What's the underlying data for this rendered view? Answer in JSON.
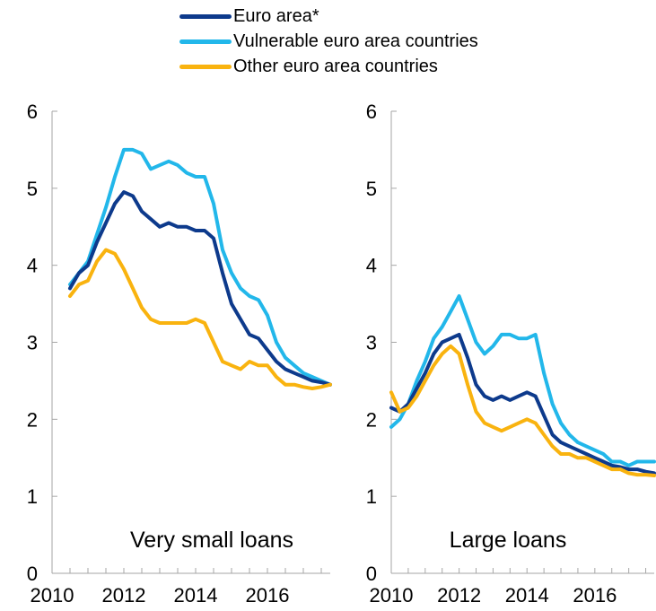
{
  "legend": [
    {
      "label": "Euro area*",
      "color": "#0d3a8c"
    },
    {
      "label": "Vulnerable euro area countries",
      "color": "#22b7ea"
    },
    {
      "label": "Other euro area countries",
      "color": "#f9b30f"
    }
  ],
  "chart_data": [
    {
      "type": "line",
      "panel_label": "Very small loans",
      "xlim": [
        2010,
        2017.75
      ],
      "ylim": [
        0,
        6
      ],
      "x_ticks": [
        "2010",
        "2012",
        "2014",
        "2016"
      ],
      "y_ticks": [
        "0",
        "1",
        "2",
        "3",
        "4",
        "5",
        "6"
      ],
      "grid": false,
      "series": [
        {
          "name": "Euro area*",
          "color": "#0d3a8c",
          "x": [
            2010.5,
            2010.75,
            2011.0,
            2011.25,
            2011.5,
            2011.75,
            2012.0,
            2012.25,
            2012.5,
            2012.75,
            2013.0,
            2013.25,
            2013.5,
            2013.75,
            2014.0,
            2014.25,
            2014.5,
            2014.75,
            2015.0,
            2015.25,
            2015.5,
            2015.75,
            2016.0,
            2016.25,
            2016.5,
            2016.75,
            2017.0,
            2017.25,
            2017.5,
            2017.75
          ],
          "y": [
            3.7,
            3.9,
            4.0,
            4.3,
            4.55,
            4.8,
            4.95,
            4.9,
            4.7,
            4.6,
            4.5,
            4.55,
            4.5,
            4.5,
            4.45,
            4.45,
            4.35,
            3.9,
            3.5,
            3.3,
            3.1,
            3.05,
            2.9,
            2.75,
            2.65,
            2.6,
            2.55,
            2.5,
            2.48,
            2.45
          ]
        },
        {
          "name": "Vulnerable euro area countries",
          "color": "#22b7ea",
          "x": [
            2010.5,
            2010.75,
            2011.0,
            2011.25,
            2011.5,
            2011.75,
            2012.0,
            2012.25,
            2012.5,
            2012.75,
            2013.0,
            2013.25,
            2013.5,
            2013.75,
            2014.0,
            2014.25,
            2014.5,
            2014.75,
            2015.0,
            2015.25,
            2015.5,
            2015.75,
            2016.0,
            2016.25,
            2016.5,
            2016.75,
            2017.0,
            2017.25,
            2017.5,
            2017.75
          ],
          "y": [
            3.75,
            3.9,
            4.05,
            4.4,
            4.75,
            5.15,
            5.5,
            5.5,
            5.45,
            5.25,
            5.3,
            5.35,
            5.3,
            5.2,
            5.15,
            5.15,
            4.8,
            4.2,
            3.9,
            3.7,
            3.6,
            3.55,
            3.35,
            3.0,
            2.8,
            2.7,
            2.6,
            2.55,
            2.5,
            2.45
          ]
        },
        {
          "name": "Other euro area countries",
          "color": "#f9b30f",
          "x": [
            2010.5,
            2010.75,
            2011.0,
            2011.25,
            2011.5,
            2011.75,
            2012.0,
            2012.25,
            2012.5,
            2012.75,
            2013.0,
            2013.25,
            2013.5,
            2013.75,
            2014.0,
            2014.25,
            2014.5,
            2014.75,
            2015.0,
            2015.25,
            2015.5,
            2015.75,
            2016.0,
            2016.25,
            2016.5,
            2016.75,
            2017.0,
            2017.25,
            2017.5,
            2017.75
          ],
          "y": [
            3.6,
            3.75,
            3.8,
            4.05,
            4.2,
            4.15,
            3.95,
            3.7,
            3.45,
            3.3,
            3.25,
            3.25,
            3.25,
            3.25,
            3.3,
            3.25,
            3.0,
            2.75,
            2.7,
            2.65,
            2.75,
            2.7,
            2.7,
            2.55,
            2.45,
            2.45,
            2.42,
            2.4,
            2.42,
            2.45
          ]
        }
      ]
    },
    {
      "type": "line",
      "panel_label": "Large loans",
      "xlim": [
        2010,
        2017.75
      ],
      "ylim": [
        0,
        6
      ],
      "x_ticks": [
        "2010",
        "2012",
        "2014",
        "2016"
      ],
      "y_ticks": [
        "0",
        "1",
        "2",
        "3",
        "4",
        "5",
        "6"
      ],
      "grid": false,
      "series": [
        {
          "name": "Euro area*",
          "color": "#0d3a8c",
          "x": [
            2010.0,
            2010.25,
            2010.5,
            2010.75,
            2011.0,
            2011.25,
            2011.5,
            2011.75,
            2012.0,
            2012.25,
            2012.5,
            2012.75,
            2013.0,
            2013.25,
            2013.5,
            2013.75,
            2014.0,
            2014.25,
            2014.5,
            2014.75,
            2015.0,
            2015.25,
            2015.5,
            2015.75,
            2016.0,
            2016.25,
            2016.5,
            2016.75,
            2017.0,
            2017.25,
            2017.5,
            2017.75
          ],
          "y": [
            2.15,
            2.1,
            2.2,
            2.4,
            2.6,
            2.85,
            3.0,
            3.05,
            3.1,
            2.8,
            2.45,
            2.3,
            2.25,
            2.3,
            2.25,
            2.3,
            2.35,
            2.3,
            2.05,
            1.8,
            1.7,
            1.65,
            1.6,
            1.55,
            1.5,
            1.45,
            1.4,
            1.38,
            1.35,
            1.35,
            1.32,
            1.3
          ]
        },
        {
          "name": "Vulnerable euro area countries",
          "color": "#22b7ea",
          "x": [
            2010.0,
            2010.25,
            2010.5,
            2010.75,
            2011.0,
            2011.25,
            2011.5,
            2011.75,
            2012.0,
            2012.25,
            2012.5,
            2012.75,
            2013.0,
            2013.25,
            2013.5,
            2013.75,
            2014.0,
            2014.25,
            2014.5,
            2014.75,
            2015.0,
            2015.25,
            2015.5,
            2015.75,
            2016.0,
            2016.25,
            2016.5,
            2016.75,
            2017.0,
            2017.25,
            2017.5,
            2017.75
          ],
          "y": [
            1.9,
            2.0,
            2.2,
            2.5,
            2.75,
            3.05,
            3.2,
            3.4,
            3.6,
            3.3,
            3.0,
            2.85,
            2.95,
            3.1,
            3.1,
            3.05,
            3.05,
            3.1,
            2.6,
            2.2,
            1.95,
            1.8,
            1.7,
            1.65,
            1.6,
            1.55,
            1.45,
            1.45,
            1.4,
            1.45,
            1.45,
            1.45
          ]
        },
        {
          "name": "Other euro area countries",
          "color": "#f9b30f",
          "x": [
            2010.0,
            2010.25,
            2010.5,
            2010.75,
            2011.0,
            2011.25,
            2011.5,
            2011.75,
            2012.0,
            2012.25,
            2012.5,
            2012.75,
            2013.0,
            2013.25,
            2013.5,
            2013.75,
            2014.0,
            2014.25,
            2014.5,
            2014.75,
            2015.0,
            2015.25,
            2015.5,
            2015.75,
            2016.0,
            2016.25,
            2016.5,
            2016.75,
            2017.0,
            2017.25,
            2017.5,
            2017.75
          ],
          "y": [
            2.35,
            2.1,
            2.15,
            2.3,
            2.5,
            2.7,
            2.85,
            2.95,
            2.85,
            2.45,
            2.1,
            1.95,
            1.9,
            1.85,
            1.9,
            1.95,
            2.0,
            1.95,
            1.8,
            1.65,
            1.55,
            1.55,
            1.5,
            1.5,
            1.45,
            1.4,
            1.35,
            1.35,
            1.3,
            1.28,
            1.28,
            1.27
          ]
        }
      ]
    }
  ]
}
